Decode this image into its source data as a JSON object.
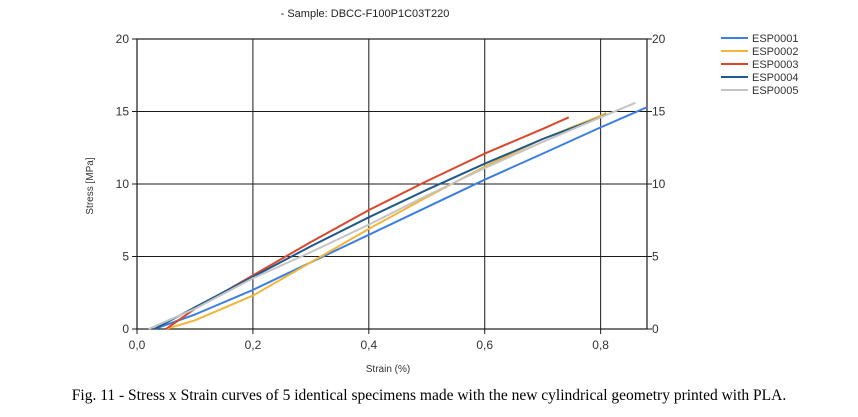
{
  "chart_data": {
    "type": "line",
    "title": "- Sample: DBCC-F100P1C03T220",
    "xlabel": "Strain (%)",
    "ylabel": "Stress [MPa]",
    "xlim": [
      0.0,
      0.88
    ],
    "ylim": [
      0,
      20
    ],
    "x_ticks": [
      "0,0",
      "0,2",
      "0,4",
      "0,6",
      "0,8"
    ],
    "x_tick_values": [
      0.0,
      0.2,
      0.4,
      0.6,
      0.8
    ],
    "y_ticks": [
      "0",
      "5",
      "10",
      "15",
      "20"
    ],
    "y_tick_values": [
      0,
      5,
      10,
      15,
      20
    ],
    "grid": true,
    "legend_position": "right",
    "series": [
      {
        "name": "ESP0001",
        "color": "#3d7fe0",
        "points": [
          [
            0.03,
            0
          ],
          [
            0.1,
            1.0
          ],
          [
            0.2,
            2.7
          ],
          [
            0.3,
            4.6
          ],
          [
            0.4,
            6.5
          ],
          [
            0.5,
            8.4
          ],
          [
            0.6,
            10.3
          ],
          [
            0.7,
            12.1
          ],
          [
            0.8,
            13.9
          ],
          [
            0.88,
            15.3
          ]
        ]
      },
      {
        "name": "ESP0002",
        "color": "#f2b53a",
        "points": [
          [
            0.05,
            0
          ],
          [
            0.1,
            0.6
          ],
          [
            0.2,
            2.3
          ],
          [
            0.3,
            4.6
          ],
          [
            0.4,
            6.9
          ],
          [
            0.5,
            9.1
          ],
          [
            0.6,
            11.2
          ],
          [
            0.7,
            13.1
          ],
          [
            0.8,
            14.7
          ],
          [
            0.81,
            14.9
          ]
        ]
      },
      {
        "name": "ESP0003",
        "color": "#d9482b",
        "points": [
          [
            0.05,
            0
          ],
          [
            0.1,
            1.4
          ],
          [
            0.2,
            3.7
          ],
          [
            0.3,
            6.0
          ],
          [
            0.4,
            8.2
          ],
          [
            0.5,
            10.2
          ],
          [
            0.6,
            12.1
          ],
          [
            0.7,
            13.8
          ],
          [
            0.745,
            14.6
          ]
        ]
      },
      {
        "name": "ESP0004",
        "color": "#1f5a8c",
        "points": [
          [
            0.03,
            0
          ],
          [
            0.1,
            1.5
          ],
          [
            0.2,
            3.6
          ],
          [
            0.3,
            5.7
          ],
          [
            0.4,
            7.7
          ],
          [
            0.5,
            9.6
          ],
          [
            0.6,
            11.4
          ],
          [
            0.7,
            13.1
          ],
          [
            0.8,
            14.6
          ],
          [
            0.81,
            14.8
          ]
        ]
      },
      {
        "name": "ESP0005",
        "color": "#c4c4c4",
        "points": [
          [
            0.02,
            0
          ],
          [
            0.1,
            1.4
          ],
          [
            0.2,
            3.5
          ],
          [
            0.3,
            5.3
          ],
          [
            0.4,
            7.2
          ],
          [
            0.5,
            9.2
          ],
          [
            0.6,
            11.1
          ],
          [
            0.7,
            12.9
          ],
          [
            0.8,
            14.6
          ],
          [
            0.86,
            15.6
          ]
        ]
      }
    ]
  },
  "caption": "Fig. 11 - Stress x Strain curves of 5 identical specimens made with the new cylindrical geometry printed with PLA."
}
